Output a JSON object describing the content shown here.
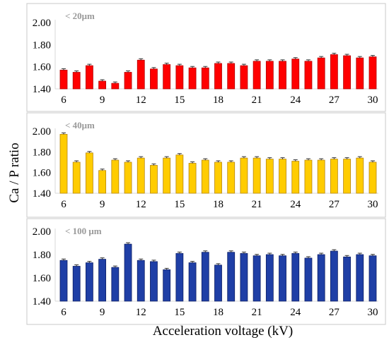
{
  "figure": {
    "ylabel": "Ca / P ratio",
    "xlabel": "Acceleration voltage (kV)"
  },
  "chart_data": [
    {
      "type": "bar",
      "title": "< 20μm",
      "color": "#ff0000",
      "edge_color": "#b30000",
      "ylim": [
        1.4,
        2.0
      ],
      "yticks": [
        "1.40",
        "1.60",
        "1.80",
        "2.00"
      ],
      "xticks": [
        "6",
        "9",
        "12",
        "15",
        "18",
        "21",
        "24",
        "27",
        "30"
      ],
      "x": [
        6,
        7,
        8,
        9,
        10,
        11,
        12,
        13,
        14,
        15,
        16,
        17,
        18,
        19,
        20,
        21,
        22,
        23,
        24,
        25,
        26,
        27,
        28,
        29,
        30
      ],
      "values": [
        1.57,
        1.55,
        1.61,
        1.47,
        1.45,
        1.55,
        1.66,
        1.58,
        1.62,
        1.61,
        1.59,
        1.59,
        1.63,
        1.63,
        1.61,
        1.65,
        1.65,
        1.65,
        1.67,
        1.65,
        1.68,
        1.71,
        1.7,
        1.68,
        1.69
      ]
    },
    {
      "type": "bar",
      "title": "< 40μm",
      "color": "#ffcc00",
      "edge_color": "#b8860b",
      "ylim": [
        1.4,
        2.0
      ],
      "yticks": [
        "1.40",
        "1.60",
        "1.80",
        "2.00"
      ],
      "xticks": [
        "6",
        "9",
        "12",
        "15",
        "18",
        "21",
        "24",
        "27",
        "30"
      ],
      "x": [
        6,
        7,
        8,
        9,
        10,
        11,
        12,
        13,
        14,
        15,
        16,
        17,
        18,
        19,
        20,
        21,
        22,
        23,
        24,
        25,
        26,
        27,
        28,
        29,
        30
      ],
      "values": [
        1.97,
        1.7,
        1.79,
        1.62,
        1.72,
        1.7,
        1.74,
        1.67,
        1.74,
        1.77,
        1.69,
        1.72,
        1.7,
        1.7,
        1.74,
        1.74,
        1.73,
        1.73,
        1.71,
        1.72,
        1.72,
        1.73,
        1.73,
        1.74,
        1.7
      ]
    },
    {
      "type": "bar",
      "title": "< 100 μm",
      "color": "#1f3fa6",
      "edge_color": "#0d1f66",
      "ylim": [
        1.4,
        2.0
      ],
      "yticks": [
        "1.40",
        "1.60",
        "1.80",
        "2.00"
      ],
      "xticks": [
        "6",
        "9",
        "12",
        "15",
        "18",
        "21",
        "24",
        "27",
        "30"
      ],
      "x": [
        6,
        7,
        8,
        9,
        10,
        11,
        12,
        13,
        14,
        15,
        16,
        17,
        18,
        19,
        20,
        21,
        22,
        23,
        24,
        25,
        26,
        27,
        28,
        29,
        30
      ],
      "values": [
        1.75,
        1.7,
        1.73,
        1.76,
        1.69,
        1.89,
        1.75,
        1.74,
        1.67,
        1.81,
        1.73,
        1.82,
        1.71,
        1.82,
        1.81,
        1.79,
        1.8,
        1.79,
        1.81,
        1.77,
        1.8,
        1.83,
        1.78,
        1.8,
        1.79
      ]
    }
  ]
}
